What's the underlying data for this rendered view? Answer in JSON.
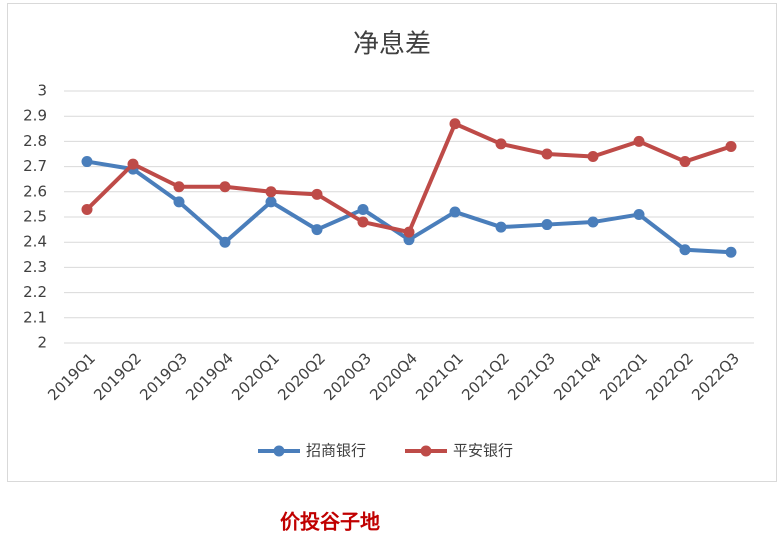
{
  "chart_data": {
    "type": "line",
    "title": "净息差",
    "categories": [
      "2019Q1",
      "2019Q2",
      "2019Q3",
      "2019Q4",
      "2020Q1",
      "2020Q2",
      "2020Q3",
      "2020Q4",
      "2021Q1",
      "2021Q2",
      "2021Q3",
      "2021Q4",
      "2022Q1",
      "2022Q2",
      "2022Q3"
    ],
    "series": [
      {
        "name": "招商银行",
        "color": "#4a7ebb",
        "values": [
          2.72,
          2.69,
          2.56,
          2.4,
          2.56,
          2.45,
          2.53,
          2.41,
          2.52,
          2.46,
          2.47,
          2.48,
          2.51,
          2.37,
          2.36
        ]
      },
      {
        "name": "平安银行",
        "color": "#be4b48",
        "values": [
          2.53,
          2.71,
          2.62,
          2.62,
          2.6,
          2.59,
          2.48,
          2.44,
          2.87,
          2.79,
          2.75,
          2.74,
          2.8,
          2.72,
          2.78
        ]
      }
    ],
    "ylim": [
      2,
      3
    ],
    "yticks": [
      2,
      2.1,
      2.2,
      2.3,
      2.4,
      2.5,
      2.6,
      2.7,
      2.8,
      2.9,
      3
    ],
    "grid": true,
    "legend": "bottom"
  },
  "watermark": "价投谷子地"
}
